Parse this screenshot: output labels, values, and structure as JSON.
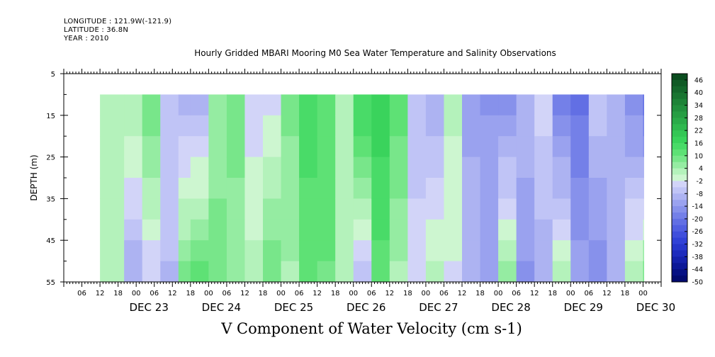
{
  "header": {
    "longitude": "LONGITUDE : 121.9W(-121.9)",
    "latitude": "LATITUDE : 36.8N",
    "year": "YEAR : 2010"
  },
  "chart_data": {
    "type": "heatmap",
    "title": "Hourly Gridded MBARI Mooring M0 Sea Water Temperature and Salinity Observations",
    "xlabel": "V Component of Water Velocity (cm s-1)",
    "ylabel": "DEPTH (m)",
    "y_axis": {
      "range": [
        5,
        55
      ],
      "inverted": true,
      "ticks": [
        5,
        15,
        25,
        35,
        45,
        55
      ]
    },
    "x_axis": {
      "start": "2010-12-22T00:00",
      "end": "2010-12-30T06:00",
      "hour_tick_labels": [
        "06",
        "12",
        "18",
        "00",
        "06",
        "12",
        "18",
        "00",
        "06",
        "12",
        "18",
        "00",
        "06",
        "12",
        "18",
        "00",
        "06",
        "12",
        "18",
        "00",
        "06",
        "12",
        "18",
        "00",
        "06",
        "12",
        "18",
        "00",
        "06",
        "12",
        "18",
        "00"
      ],
      "day_labels": [
        "DEC 23",
        "DEC 24",
        "DEC 25",
        "DEC 26",
        "DEC 27",
        "DEC 28",
        "DEC 29",
        "DEC 30"
      ]
    },
    "data_extent": {
      "time_start": "2010-12-22T12:00",
      "time_end": "2010-12-30T00:00",
      "depth_min": 10,
      "depth_max": 55
    },
    "colorbar": {
      "labels": [
        46,
        40,
        34,
        28,
        22,
        16,
        10,
        4,
        -2,
        -8,
        -14,
        -20,
        -26,
        -32,
        -38,
        -44,
        -50
      ],
      "levels": [
        49,
        46,
        43,
        40,
        37,
        34,
        31,
        28,
        25,
        22,
        19,
        16,
        13,
        10,
        7,
        4,
        1,
        -2,
        -5,
        -8,
        -11,
        -14,
        -17,
        -20,
        -23,
        -26,
        -29,
        -32,
        -35,
        -38,
        -41,
        -44,
        -47,
        -50
      ],
      "colors": [
        "#0b4d1f",
        "#105a25",
        "#14672b",
        "#197531",
        "#1d8337",
        "#21903d",
        "#269e43",
        "#2aab49",
        "#2fb94f",
        "#34c755",
        "#3ad35c",
        "#49db68",
        "#5ee175",
        "#78e68a",
        "#95eca2",
        "#b4f2bb",
        "#cdf6d0",
        "#d2d4f8",
        "#c0c4f6",
        "#adb3f2",
        "#9aa2ef",
        "#8791eb",
        "#7480e8",
        "#626fe4",
        "#515fe1",
        "#404fdc",
        "#3142d7",
        "#2636cb",
        "#1d2bbd",
        "#1421ab",
        "#0c1897",
        "#061083",
        "#020a6f"
      ]
    },
    "grid": false,
    "series": [
      {
        "times": [
          "2010-12-22T12:00",
          "2010-12-22T20:00",
          "2010-12-23T02:00",
          "2010-12-23T08:00",
          "2010-12-23T14:00",
          "2010-12-23T18:00",
          "2010-12-24T00:00",
          "2010-12-24T06:00",
          "2010-12-24T12:00",
          "2010-12-24T18:00",
          "2010-12-25T00:00",
          "2010-12-25T06:00",
          "2010-12-25T12:00",
          "2010-12-25T18:00",
          "2010-12-26T00:00",
          "2010-12-26T06:00",
          "2010-12-26T12:00",
          "2010-12-26T18:00",
          "2010-12-27T00:00",
          "2010-12-27T06:00",
          "2010-12-27T12:00",
          "2010-12-27T18:00",
          "2010-12-28T00:00",
          "2010-12-28T06:00",
          "2010-12-28T12:00",
          "2010-12-28T18:00",
          "2010-12-29T00:00",
          "2010-12-29T06:00",
          "2010-12-29T12:00",
          "2010-12-29T18:00",
          "2010-12-30T00:00"
        ],
        "surface_v": [
          2,
          4,
          10,
          -6,
          -8,
          -10,
          6,
          8,
          -4,
          -2,
          8,
          14,
          12,
          2,
          16,
          18,
          12,
          -6,
          -10,
          2,
          -12,
          -14,
          -16,
          -8,
          -4,
          -18,
          -20,
          -6,
          -10,
          -16,
          -22
        ],
        "deep_v": [
          2,
          -10,
          -4,
          -8,
          8,
          12,
          8,
          6,
          2,
          10,
          4,
          12,
          10,
          2,
          -6,
          12,
          4,
          -4,
          2,
          -2,
          -8,
          -12,
          6,
          -14,
          -10,
          2,
          -12,
          -16,
          -10,
          2,
          8
        ]
      }
    ]
  }
}
